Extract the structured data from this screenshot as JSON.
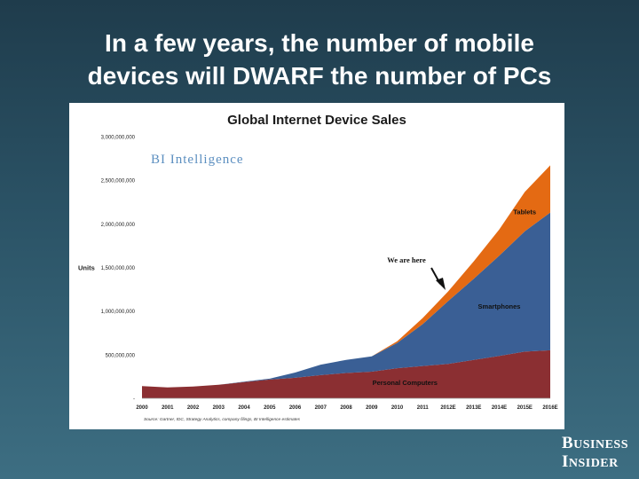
{
  "slide": {
    "title_line1": "In a few years, the number of mobile",
    "title_line2": "devices will DWARF the number of PCs"
  },
  "logo": {
    "line1_big": "B",
    "line1_small": "USINESS",
    "line2_big": "I",
    "line2_small": "NSIDER"
  },
  "chart_data": {
    "type": "area",
    "stacked": true,
    "title": "Global Internet Device Sales",
    "watermark": "BI Intelligence",
    "ylabel": "Units",
    "xlabel": "",
    "ylim": [
      0,
      3000000000
    ],
    "yticks": [
      0,
      500000000,
      1000000000,
      1500000000,
      2000000000,
      2500000000,
      3000000000
    ],
    "ytick_labels": [
      "-",
      "500,000,000",
      "1,000,000,000",
      "1,500,000,000",
      "2,000,000,000",
      "2,500,000,000",
      "3,000,000,000"
    ],
    "categories": [
      "2000",
      "2001",
      "2002",
      "2003",
      "2004",
      "2005",
      "2006",
      "2007",
      "2008",
      "2009",
      "2010",
      "2011",
      "2012E",
      "2013E",
      "2014E",
      "2015E",
      "2016E"
    ],
    "series": [
      {
        "name": "Personal Computers",
        "color": "#8b2f32",
        "values": [
          140000000,
          125000000,
          135000000,
          155000000,
          185000000,
          215000000,
          235000000,
          265000000,
          290000000,
          305000000,
          345000000,
          370000000,
          395000000,
          440000000,
          485000000,
          535000000,
          550000000
        ]
      },
      {
        "name": "Smartphones",
        "color": "#3a5f95",
        "values": [
          0,
          0,
          0,
          0,
          5000000,
          10000000,
          60000000,
          120000000,
          150000000,
          175000000,
          290000000,
          480000000,
          720000000,
          930000000,
          1150000000,
          1380000000,
          1580000000
        ]
      },
      {
        "name": "Tablets",
        "color": "#e46a13",
        "values": [
          0,
          0,
          0,
          0,
          0,
          0,
          0,
          0,
          0,
          0,
          18000000,
          70000000,
          110000000,
          200000000,
          300000000,
          450000000,
          540000000
        ]
      }
    ],
    "annotation": "We are here",
    "source": "Source: Gartner, IDC, Strategy Analytics, company filings, BI Intelligence estimates"
  }
}
